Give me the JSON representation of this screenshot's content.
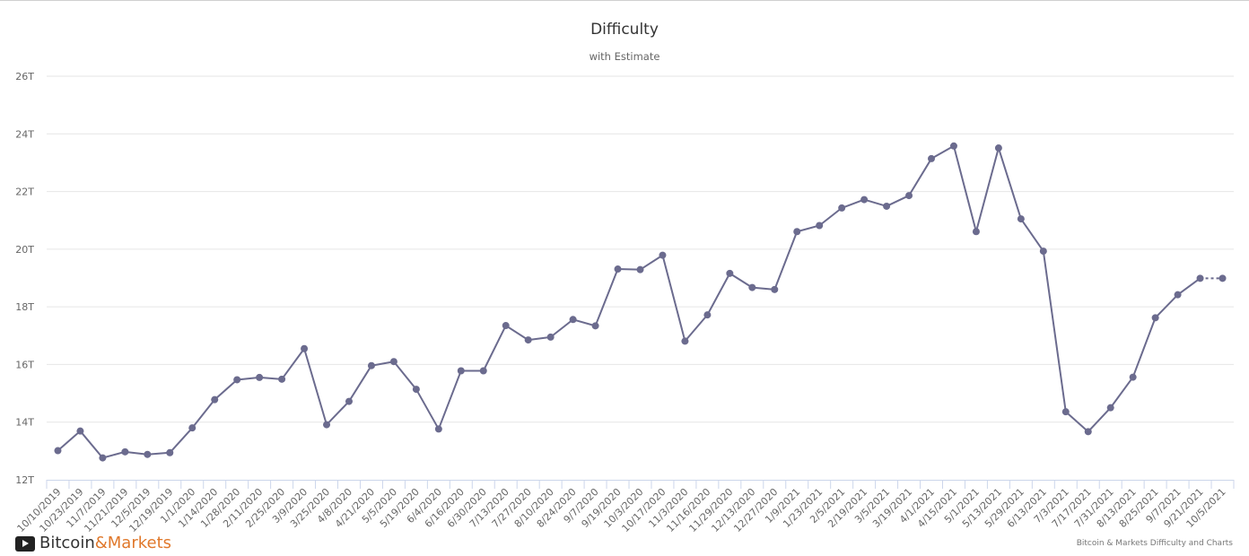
{
  "brand": {
    "name_part1": "Bitcoin",
    "name_part2": "&Markets",
    "logo_icon": "play-icon",
    "color_part1": "#333333",
    "color_part2": "#e0782b"
  },
  "credits": "Bitcoin & Markets Difficulty and Charts",
  "chart_data": {
    "type": "line",
    "title": "Difficulty",
    "subtitle": "with Estimate",
    "xlabel": "",
    "ylabel": "",
    "ylim": [
      12,
      26
    ],
    "yticks": [
      12,
      14,
      16,
      18,
      20,
      22,
      24,
      26
    ],
    "ytick_labels": [
      "12T",
      "14T",
      "16T",
      "18T",
      "20T",
      "22T",
      "24T",
      "26T"
    ],
    "grid": true,
    "legend": "none",
    "series_color": "#6b6b8e",
    "categories": [
      "10/10/2019",
      "10/23/2019",
      "11/7/2019",
      "11/21/2019",
      "12/5/2019",
      "12/19/2019",
      "1/1/2020",
      "1/14/2020",
      "1/28/2020",
      "2/11/2020",
      "2/25/2020",
      "3/9/2020",
      "3/25/2020",
      "4/8/2020",
      "4/21/2020",
      "5/5/2020",
      "5/19/2020",
      "6/4/2020",
      "6/16/2020",
      "6/30/2020",
      "7/13/2020",
      "7/27/2020",
      "8/10/2020",
      "8/24/2020",
      "9/7/2020",
      "9/19/2020",
      "10/3/2020",
      "10/17/2020",
      "11/3/2020",
      "11/16/2020",
      "11/29/2020",
      "12/13/2020",
      "12/27/2020",
      "1/9/2021",
      "1/23/2021",
      "2/5/2021",
      "2/19/2021",
      "3/5/2021",
      "3/19/2021",
      "4/1/2021",
      "4/15/2021",
      "5/1/2021",
      "5/13/2021",
      "5/29/2021",
      "6/13/2021",
      "7/3/2021",
      "7/17/2021",
      "7/31/2021",
      "8/13/2021",
      "8/25/2021",
      "9/7/2021",
      "9/21/2021",
      "10/5/2021"
    ],
    "series": [
      {
        "values": [
          13.01,
          13.69,
          12.76,
          12.97,
          12.88,
          12.94,
          13.8,
          14.78,
          15.47,
          15.55,
          15.49,
          16.55,
          13.91,
          14.72,
          15.96,
          16.1,
          15.14,
          13.76,
          15.78,
          15.78,
          17.35,
          16.85,
          16.95,
          17.56,
          17.34,
          19.31,
          19.29,
          19.79,
          16.81,
          17.72,
          19.16,
          18.67,
          18.6,
          20.61,
          20.82,
          21.43,
          21.72,
          21.49,
          21.86,
          23.14,
          23.58,
          20.61,
          23.51,
          21.05,
          19.93,
          14.36,
          13.67,
          14.5,
          15.56,
          17.62,
          18.42,
          18.99,
          18.99
        ]
      }
    ],
    "estimate_from_index": 51
  }
}
